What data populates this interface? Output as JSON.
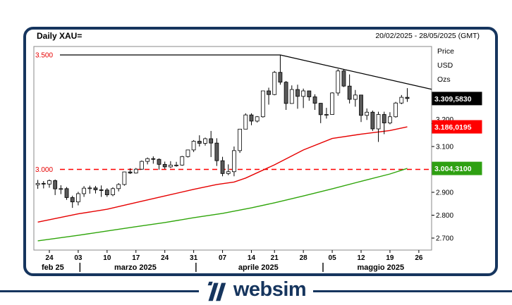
{
  "header": {
    "title": "Daily XAU=",
    "range": "20/02/2025 - 28/05/2025 (GMT)"
  },
  "axis_units": [
    "Price",
    "USD",
    "Ozs"
  ],
  "footer": {
    "brand": "websim"
  },
  "colors": {
    "navy": "#16355e",
    "line_red": "#e60000",
    "dashed_red": "#ff0000",
    "line_green": "#2fa50a",
    "flag_black_bg": "#000000",
    "flag_red_bg": "#ff0000",
    "flag_green_bg": "#2ea012",
    "candle_up_fill": "#ffffff",
    "candle_down_fill": "#595959",
    "label_red": "#e60000",
    "border_gray": "#888888"
  },
  "chart_data": {
    "type": "candlestick",
    "title": "Daily XAU=",
    "date_range": "20/02/2025 - 28/05/2025 (GMT)",
    "ylim": [
      2660,
      3540
    ],
    "grid": false,
    "candles": [
      [
        "20/02",
        2933,
        2954,
        2915,
        2939
      ],
      [
        "21/02",
        2939,
        2949,
        2917,
        2936
      ],
      [
        "24/02",
        2936,
        2956,
        2920,
        2951
      ],
      [
        "25/02",
        2951,
        2956,
        2888,
        2915
      ],
      [
        "26/02",
        2915,
        2931,
        2892,
        2916
      ],
      [
        "27/02",
        2916,
        2923,
        2867,
        2877
      ],
      [
        "28/02",
        2877,
        2885,
        2832,
        2858
      ],
      [
        "03/03",
        2858,
        2902,
        2843,
        2894
      ],
      [
        "04/03",
        2894,
        2927,
        2880,
        2918
      ],
      [
        "05/03",
        2918,
        2929,
        2894,
        2919
      ],
      [
        "06/03",
        2919,
        2928,
        2895,
        2911
      ],
      [
        "07/03",
        2911,
        2930,
        2880,
        2910
      ],
      [
        "10/03",
        2910,
        2918,
        2880,
        2889
      ],
      [
        "11/03",
        2889,
        2922,
        2883,
        2916
      ],
      [
        "12/03",
        2916,
        2940,
        2904,
        2934
      ],
      [
        "13/03",
        2934,
        2990,
        2929,
        2989
      ],
      [
        "14/03",
        2989,
        3005,
        2980,
        2984
      ],
      [
        "17/03",
        2984,
        3006,
        2982,
        3001
      ],
      [
        "18/03",
        3001,
        3039,
        2998,
        3035
      ],
      [
        "19/03",
        3035,
        3052,
        3022,
        3047
      ],
      [
        "20/03",
        3047,
        3057,
        3025,
        3044
      ],
      [
        "21/03",
        3044,
        3048,
        2999,
        3022
      ],
      [
        "24/03",
        3022,
        3034,
        3002,
        3011
      ],
      [
        "25/03",
        3011,
        3036,
        3006,
        3019
      ],
      [
        "26/03",
        3019,
        3033,
        3012,
        3019
      ],
      [
        "27/03",
        3019,
        3059,
        3016,
        3056
      ],
      [
        "28/03",
        3056,
        3086,
        3052,
        3085
      ],
      [
        "31/03",
        3085,
        3128,
        3076,
        3123
      ],
      [
        "01/04",
        3123,
        3149,
        3100,
        3114
      ],
      [
        "02/04",
        3114,
        3139,
        3104,
        3134
      ],
      [
        "03/04",
        3134,
        3168,
        3054,
        3115
      ],
      [
        "04/04",
        3115,
        3136,
        3015,
        3038
      ],
      [
        "07/04",
        3038,
        3055,
        2970,
        2982
      ],
      [
        "08/04",
        2982,
        3022,
        2975,
        2990
      ],
      [
        "09/04",
        2990,
        3100,
        2970,
        3082
      ],
      [
        "10/04",
        3082,
        3176,
        3072,
        3176
      ],
      [
        "11/04",
        3176,
        3245,
        3176,
        3238
      ],
      [
        "14/04",
        3238,
        3245,
        3193,
        3211
      ],
      [
        "15/04",
        3211,
        3233,
        3205,
        3230
      ],
      [
        "16/04",
        3230,
        3343,
        3226,
        3343
      ],
      [
        "17/04",
        3343,
        3357,
        3283,
        3327
      ],
      [
        "21/04",
        3327,
        3430,
        3324,
        3424
      ],
      [
        "22/04",
        3424,
        3500,
        3370,
        3381
      ],
      [
        "23/04",
        3381,
        3386,
        3260,
        3288
      ],
      [
        "24/04",
        3288,
        3367,
        3287,
        3349
      ],
      [
        "25/04",
        3349,
        3370,
        3265,
        3319
      ],
      [
        "28/04",
        3319,
        3353,
        3268,
        3343
      ],
      [
        "29/04",
        3343,
        3344,
        3300,
        3317
      ],
      [
        "30/04",
        3317,
        3328,
        3260,
        3289
      ],
      [
        "01/05",
        3289,
        3290,
        3202,
        3239
      ],
      [
        "02/05",
        3239,
        3269,
        3222,
        3240
      ],
      [
        "05/05",
        3240,
        3337,
        3239,
        3334
      ],
      [
        "06/05",
        3334,
        3438,
        3322,
        3430
      ],
      [
        "07/05",
        3430,
        3438,
        3360,
        3364
      ],
      [
        "08/05",
        3364,
        3415,
        3288,
        3306
      ],
      [
        "09/05",
        3306,
        3347,
        3274,
        3325
      ],
      [
        "12/05",
        3325,
        3326,
        3207,
        3236
      ],
      [
        "13/05",
        3236,
        3266,
        3216,
        3250
      ],
      [
        "14/05",
        3250,
        3257,
        3168,
        3177
      ],
      [
        "15/05",
        3177,
        3252,
        3120,
        3240
      ],
      [
        "16/05",
        3240,
        3252,
        3154,
        3203
      ],
      [
        "19/05",
        3203,
        3250,
        3197,
        3230
      ],
      [
        "20/05",
        3230,
        3295,
        3226,
        3290
      ],
      [
        "21/05",
        3290,
        3325,
        3285,
        3315
      ],
      [
        "22/05",
        3315,
        3355,
        3295,
        3309.58
      ]
    ],
    "ma_red": {
      "label": "3.186,0195",
      "last_value": 3186.0195,
      "points": [
        [
          0,
          2770
        ],
        [
          7,
          2806
        ],
        [
          12,
          2826
        ],
        [
          17,
          2855
        ],
        [
          22,
          2884
        ],
        [
          27,
          2913
        ],
        [
          31,
          2934
        ],
        [
          34,
          2945
        ],
        [
          36,
          2962
        ],
        [
          41,
          3020
        ],
        [
          46,
          3085
        ],
        [
          51,
          3135
        ],
        [
          56,
          3154
        ],
        [
          61,
          3170
        ],
        [
          64,
          3186
        ]
      ]
    },
    "ma_green": {
      "label": "3.004,3100",
      "last_value": 3004.31,
      "points": [
        [
          0,
          2688
        ],
        [
          7,
          2712
        ],
        [
          12,
          2731
        ],
        [
          17,
          2750
        ],
        [
          22,
          2768
        ],
        [
          27,
          2789
        ],
        [
          32,
          2808
        ],
        [
          37,
          2832
        ],
        [
          41,
          2854
        ],
        [
          46,
          2884
        ],
        [
          51,
          2915
        ],
        [
          56,
          2948
        ],
        [
          61,
          2980
        ],
        [
          64,
          3004.3
        ]
      ]
    },
    "last_price": {
      "label": "3.309,5830",
      "value": 3309.583
    },
    "levels": [
      {
        "label": "3.500",
        "price": 3500,
        "style": "solid-black"
      },
      {
        "label": "3.000",
        "price": 3000,
        "style": "dashed-red"
      }
    ],
    "trendline": {
      "from_i": 42,
      "from_price": 3500,
      "to_price_at_right_edge": 3350
    },
    "y_ticks_right": [
      {
        "label": "3.200",
        "p": 3200,
        "dy": -6
      },
      {
        "label": "3.100",
        "p": 3100
      },
      {
        "label": "2.900",
        "p": 2900
      },
      {
        "label": "2.800",
        "p": 2800
      },
      {
        "label": "2.700",
        "p": 2700
      }
    ],
    "x_ticks": [
      {
        "label": "24",
        "i": 2
      },
      {
        "label": "03",
        "i": 7
      },
      {
        "label": "10",
        "i": 12
      },
      {
        "label": "17",
        "i": 17
      },
      {
        "label": "24",
        "i": 22
      },
      {
        "label": "31",
        "i": 27
      },
      {
        "label": "07",
        "i": 32
      },
      {
        "label": "14",
        "i": 37
      },
      {
        "label": "21",
        "i": 41
      },
      {
        "label": "28",
        "i": 46
      },
      {
        "label": "05",
        "i": 51
      },
      {
        "label": "12",
        "i": 56
      },
      {
        "label": "19",
        "i": 61
      },
      {
        "label": "26",
        "i": 66
      }
    ],
    "months": [
      {
        "label": "feb 25",
        "i": 2.6
      },
      {
        "label": "marzo 2025",
        "i": 16.9
      },
      {
        "label": "aprile 2025",
        "i": 38.2
      },
      {
        "label": "maggio 2025",
        "i": 59.4
      }
    ],
    "month_separators_i": [
      7.3,
      27.4,
      49.4
    ]
  }
}
